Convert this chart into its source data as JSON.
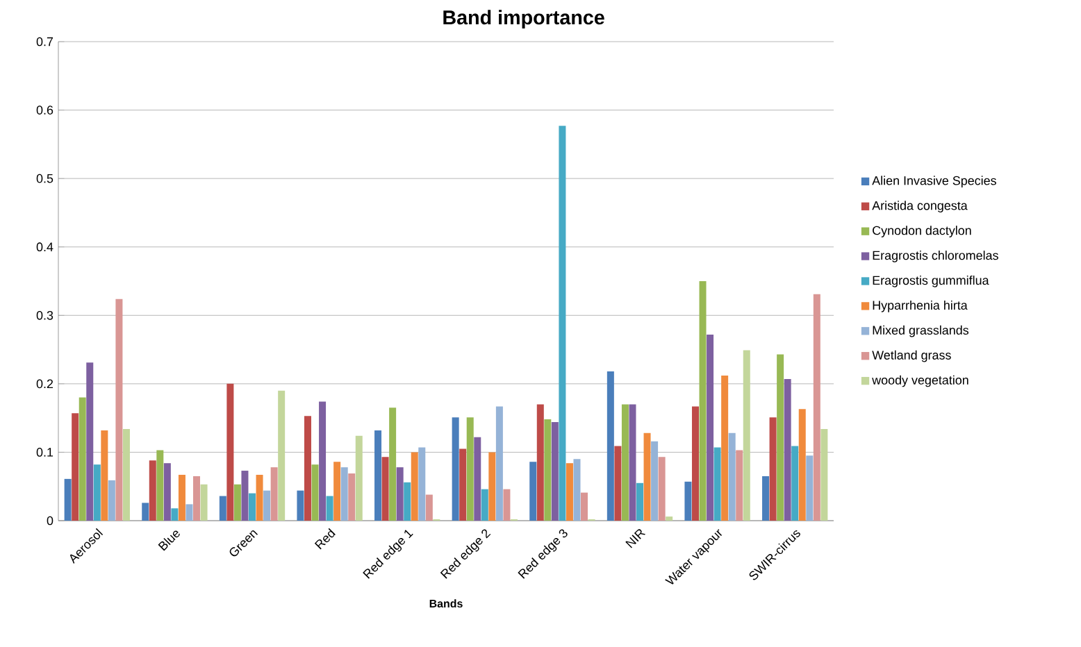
{
  "chart_data": {
    "type": "bar",
    "title": "Band importance",
    "xlabel": "Bands",
    "categories": [
      "Aerosol",
      "Blue",
      "Green",
      "Red",
      "Red edge 1",
      "Red edge 2",
      "Red edge 3",
      "NIR",
      "Water vapour",
      "SWIR-cirrus"
    ],
    "series": [
      {
        "name": "Alien Invasive Species",
        "color": "#4a7ebb",
        "values": [
          0.061,
          0.026,
          0.036,
          0.044,
          0.132,
          0.151,
          0.086,
          0.218,
          0.057,
          0.065
        ]
      },
      {
        "name": "Aristida congesta",
        "color": "#be4b48",
        "values": [
          0.157,
          0.088,
          0.2,
          0.153,
          0.093,
          0.105,
          0.17,
          0.109,
          0.167,
          0.151
        ]
      },
      {
        "name": "Cynodon dactylon",
        "color": "#98b954",
        "values": [
          0.18,
          0.103,
          0.053,
          0.082,
          0.165,
          0.151,
          0.148,
          0.17,
          0.35,
          0.243
        ]
      },
      {
        "name": "Eragrostis chloromelas",
        "color": "#7d60a0",
        "values": [
          0.231,
          0.084,
          0.073,
          0.174,
          0.078,
          0.122,
          0.144,
          0.17,
          0.272,
          0.207
        ]
      },
      {
        "name": "Eragrostis gummiflua",
        "color": "#46aac5",
        "values": [
          0.082,
          0.018,
          0.04,
          0.036,
          0.056,
          0.046,
          0.577,
          0.055,
          0.107,
          0.109
        ]
      },
      {
        "name": "Hyparrhenia hirta",
        "color": "#f08a3c",
        "values": [
          0.132,
          0.067,
          0.067,
          0.086,
          0.1,
          0.1,
          0.084,
          0.128,
          0.212,
          0.163
        ]
      },
      {
        "name": "Mixed grasslands",
        "color": "#95b3d7",
        "values": [
          0.059,
          0.024,
          0.044,
          0.078,
          0.107,
          0.167,
          0.09,
          0.116,
          0.128,
          0.095
        ]
      },
      {
        "name": "Wetland grass",
        "color": "#d99694",
        "values": [
          0.324,
          0.065,
          0.078,
          0.069,
          0.038,
          0.046,
          0.041,
          0.093,
          0.103,
          0.331
        ]
      },
      {
        "name": "woody vegetation",
        "color": "#c3d69b",
        "values": [
          0.134,
          0.053,
          0.19,
          0.124,
          0.002,
          0.002,
          0.002,
          0.006,
          0.249,
          0.134
        ]
      }
    ],
    "ylim": [
      0,
      0.7
    ],
    "yticks": [
      0,
      0.1,
      0.2,
      0.3,
      0.4,
      0.5,
      0.6,
      0.7
    ],
    "grid": "y",
    "legend": "right"
  }
}
